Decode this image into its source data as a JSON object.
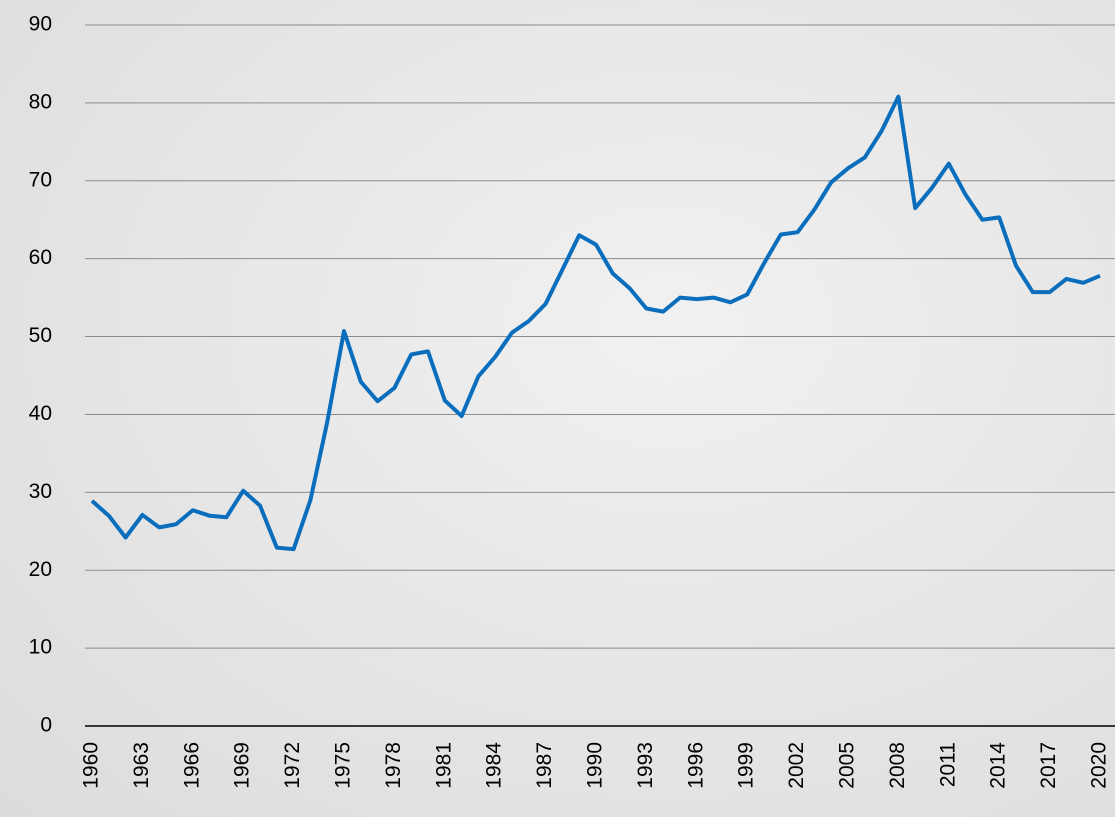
{
  "chart_data": {
    "type": "line",
    "x": [
      1960,
      1961,
      1962,
      1963,
      1964,
      1965,
      1966,
      1967,
      1968,
      1969,
      1970,
      1971,
      1972,
      1973,
      1974,
      1975,
      1976,
      1977,
      1978,
      1979,
      1980,
      1981,
      1982,
      1983,
      1984,
      1985,
      1986,
      1987,
      1988,
      1989,
      1990,
      1991,
      1992,
      1993,
      1994,
      1995,
      1996,
      1997,
      1998,
      1999,
      2000,
      2001,
      2002,
      2003,
      2004,
      2005,
      2006,
      2007,
      2008,
      2009,
      2010,
      2011,
      2012,
      2013,
      2014,
      2015,
      2016,
      2017,
      2018,
      2019,
      2020
    ],
    "series": [
      {
        "color": "#0a6ebd",
        "values": [
          28.9,
          27,
          24.2,
          27.1,
          25.5,
          25.9,
          27.7,
          27.0,
          26.8,
          30.2,
          28.3,
          22.9,
          22.7,
          29,
          39,
          50.7,
          44.2,
          41.7,
          43.4,
          47.7,
          48.1,
          41.8,
          39.8,
          44.9,
          47.4,
          50.5,
          52,
          54.2,
          58.6,
          63,
          61.8,
          58.1,
          56.2,
          53.6,
          53.2,
          55,
          54.8,
          55,
          54.4,
          55.4,
          59.4,
          63.1,
          63.4,
          66.3,
          69.8,
          71.6,
          73,
          76.4,
          80.8,
          66.5,
          69.1,
          72.2,
          68.2,
          65,
          65.3,
          59.1,
          55.7,
          55.7,
          57.4,
          56.9,
          57.8
        ]
      }
    ],
    "xlim": [
      1960,
      2020
    ],
    "xticks": [
      1960,
      1963,
      1966,
      1969,
      1972,
      1975,
      1978,
      1981,
      1984,
      1987,
      1990,
      1993,
      1996,
      1999,
      2002,
      2005,
      2008,
      2011,
      2014,
      2017,
      2020
    ],
    "ylim": [
      0,
      90
    ],
    "yticks": [
      0,
      10,
      20,
      30,
      40,
      50,
      60,
      70,
      80,
      90
    ],
    "grid": true
  }
}
